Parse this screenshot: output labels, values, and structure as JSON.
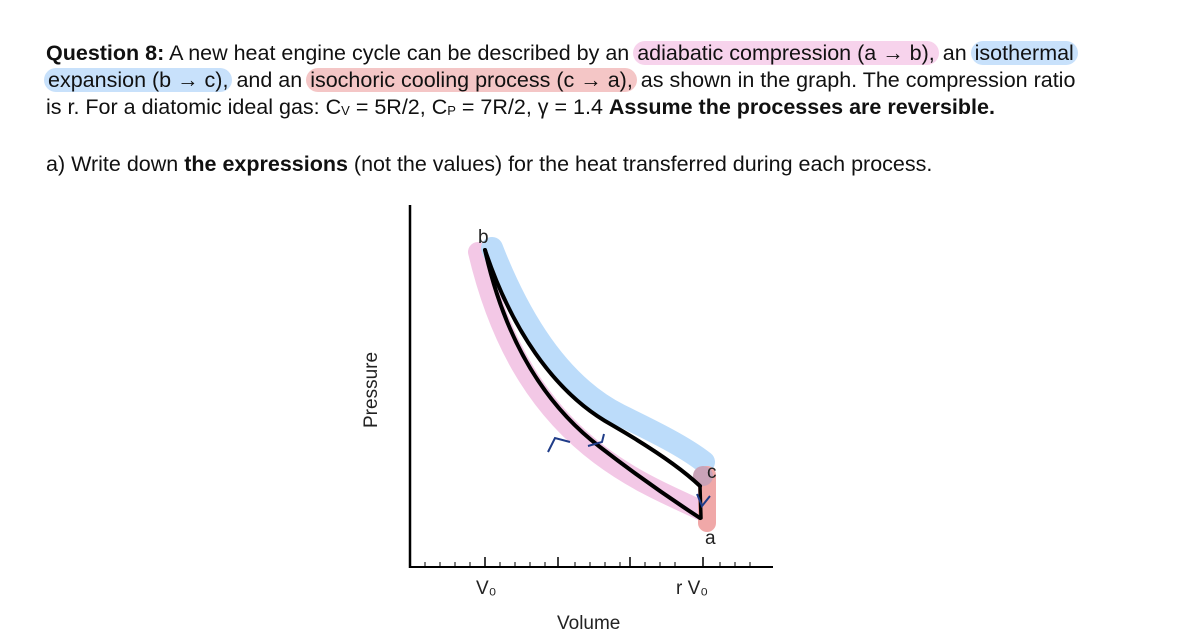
{
  "question": {
    "label": "Question 8:",
    "intro": "A new heat engine cycle can be described by an",
    "hl_adiabatic": "adiabatic compression (a → b),",
    "between_1": "an",
    "hl_isothermal_1": "isothermal",
    "hl_isothermal_2": "expansion (b → c),",
    "between_2": "and an",
    "hl_isochoric": "isochoric cooling process (c → a),",
    "after_isochoric": "as shown in the graph. The compression ratio",
    "line3_a": "is r. For a diatomic ideal gas: C",
    "sub_v": "V",
    "line3_b": "= 5R/2, C",
    "sub_p": "P",
    "line3_c": "= 7R/2, γ = 1.4",
    "bold_assume": "Assume the processes are reversible."
  },
  "part_a": {
    "lead": "a) Write down",
    "bold": "the expressions",
    "tail": "(not the values) for the heat transferred during each process."
  },
  "graph": {
    "ylabel": "Pressure",
    "xlabel": "Volume",
    "tick_v0": "V₀",
    "tick_rv0": "r V₀",
    "point_b": "b",
    "point_c": "c",
    "point_a": "a",
    "colors": {
      "adiabatic_highlight": "#f3c8e6",
      "isothermal_highlight": "#bcdcfa",
      "isochoric_highlight": "#f0a8a8",
      "curve": "#000000",
      "arrow": "#1f3c88"
    }
  }
}
